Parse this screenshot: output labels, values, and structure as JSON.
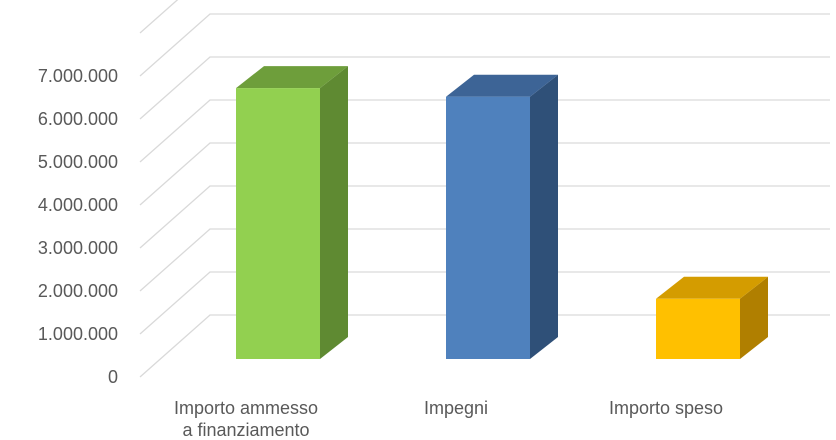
{
  "chart_data": {
    "type": "bar",
    "style": "3d-column",
    "categories": [
      [
        "Importo ammesso",
        "a finanziamento"
      ],
      [
        "Impegni"
      ],
      [
        "Importo speso"
      ]
    ],
    "values": [
      6300000,
      6100000,
      1400000
    ],
    "colors": [
      {
        "front": "#92d050",
        "side": "#5f8a32",
        "top": "#6e9e3b"
      },
      {
        "front": "#4f81bd",
        "side": "#2f5078",
        "top": "#3d6496"
      },
      {
        "front": "#ffc000",
        "side": "#b07f00",
        "top": "#d49c00"
      }
    ],
    "yticks": [
      "0",
      "1.000.000",
      "2.000.000",
      "3.000.000",
      "4.000.000",
      "5.000.000",
      "6.000.000",
      "7.000.000"
    ],
    "ylim": [
      0,
      8000000
    ],
    "grid": true,
    "legend": "none"
  }
}
